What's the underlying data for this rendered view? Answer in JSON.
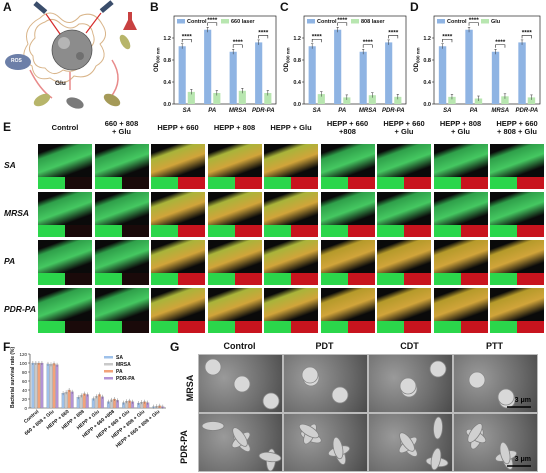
{
  "panels": {
    "A": {
      "letter": "A",
      "labels": {
        "ros": "ROS",
        "glu": "Glu"
      }
    },
    "B": {
      "letter": "B"
    },
    "C": {
      "letter": "C"
    },
    "D": {
      "letter": "D"
    },
    "E": {
      "letter": "E"
    },
    "F": {
      "letter": "F"
    },
    "G": {
      "letter": "G"
    }
  },
  "bar_charts": {
    "ylabel": "OD600 nm",
    "ylabel_main": "OD",
    "ylabel_sub": "600 nm",
    "categories": [
      "SA",
      "PA",
      "MRSA",
      "PDR-PA"
    ],
    "significance": "****",
    "colors": {
      "control": "#8fb4e3",
      "treated": "#b8e6b0"
    }
  },
  "chart_data": [
    {
      "type": "bar",
      "categories": [
        "SA",
        "PA",
        "MRSA",
        "PDR-PA"
      ],
      "series": [
        {
          "name": "Control",
          "values": [
            1.05,
            1.35,
            0.95,
            1.12
          ]
        },
        {
          "name": "660 laser",
          "values": [
            0.22,
            0.2,
            0.24,
            0.2
          ]
        }
      ],
      "ylim": [
        0,
        1.6
      ],
      "yticks": [
        "0.0",
        "0.4",
        "0.8",
        "1.2"
      ]
    },
    {
      "type": "bar",
      "categories": [
        "SA",
        "PA",
        "MRSA",
        "PDR-PA"
      ],
      "series": [
        {
          "name": "Control",
          "values": [
            1.05,
            1.35,
            0.95,
            1.12
          ]
        },
        {
          "name": "808 laser",
          "values": [
            0.18,
            0.12,
            0.16,
            0.13
          ]
        }
      ],
      "ylim": [
        0,
        1.6
      ],
      "yticks": [
        "0.0",
        "0.4",
        "0.8",
        "1.2"
      ]
    },
    {
      "type": "bar",
      "categories": [
        "SA",
        "PA",
        "MRSA",
        "PDR-PA"
      ],
      "series": [
        {
          "name": "Control",
          "values": [
            1.05,
            1.35,
            0.95,
            1.12
          ]
        },
        {
          "name": "Glu",
          "values": [
            0.13,
            0.1,
            0.14,
            0.12
          ]
        }
      ],
      "ylim": [
        0,
        1.6
      ],
      "yticks": [
        "0.0",
        "0.4",
        "0.8",
        "1.2"
      ]
    },
    {
      "type": "bar",
      "ylabel": "Bacterial survival rate (%)",
      "ylim": [
        0,
        120
      ],
      "yticks": [
        "0",
        "20",
        "40",
        "60",
        "80",
        "100",
        "120"
      ],
      "categories": [
        "Control",
        "660 + 808 + Glu",
        "HEPP + 660",
        "HEPP + 808",
        "HEPP + Glu",
        "HEPP + 660 +808",
        "HEPP + 660 + Glu",
        "HEPP + 808 + Glu",
        "HEPP + 660 + 808 + Glu"
      ],
      "series": [
        {
          "name": "SA",
          "values": [
            100,
            98,
            33,
            24,
            21,
            14,
            12,
            11,
            3
          ]
        },
        {
          "name": "MRSA",
          "values": [
            100,
            97,
            35,
            28,
            26,
            18,
            15,
            13,
            4
          ]
        },
        {
          "name": "PA",
          "values": [
            100,
            99,
            40,
            32,
            30,
            20,
            16,
            14,
            5
          ]
        },
        {
          "name": "PDR-PA",
          "values": [
            100,
            96,
            36,
            30,
            25,
            17,
            14,
            12,
            3
          ]
        }
      ],
      "colors": [
        "#9ec1ea",
        "#c9c9c9",
        "#f2a27a",
        "#b393d6"
      ]
    }
  ],
  "panel_E": {
    "columns": [
      "Control",
      "660 + 808\n+ Glu",
      "HEPP + 660",
      "HEPP + 808",
      "HEPP + Glu",
      "HEPP + 660\n+808",
      "HEPP + 660\n+ Glu",
      "HEPP + 808\n+ Glu",
      "HEPP + 660\n+ 808 + Glu"
    ],
    "rows": [
      "SA",
      "MRSA",
      "PA",
      "PDR-PA"
    ],
    "green": "#2bd64b",
    "red": "#c8141e"
  },
  "panel_G": {
    "columns": [
      "Control",
      "PDT",
      "CDT",
      "PTT"
    ],
    "rows": [
      "MRSA",
      "PDR-PA"
    ],
    "scalebar": "3 μm"
  }
}
